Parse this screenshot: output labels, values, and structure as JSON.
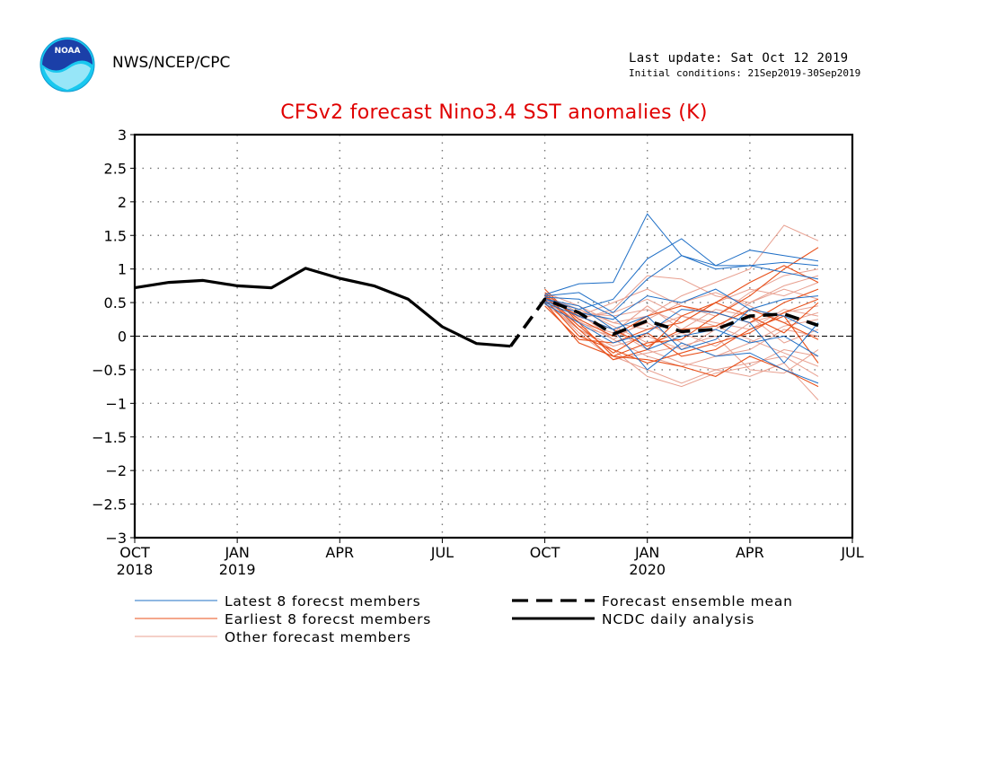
{
  "header": {
    "org": "NWS/NCEP/CPC",
    "last_update": "Last update: Sat Oct 12 2019",
    "initial_conditions": "Initial conditions: 21Sep2019-30Sep2019",
    "logo_text": "NOAA"
  },
  "chart_data": {
    "type": "line",
    "title": "CFSv2 forecast Nino3.4 SST anomalies (K)",
    "xlabel": "",
    "ylabel": "",
    "ylim": [
      -3,
      3
    ],
    "yticks": [
      3,
      2.5,
      2,
      1.5,
      1,
      0.5,
      0,
      -0.5,
      -1,
      -1.5,
      -2,
      -2.5,
      -3
    ],
    "ytick_labels": [
      "3",
      "2.5",
      "2",
      "1.5",
      "1",
      "0.5",
      "0",
      "−0.5",
      "−1",
      "−1.5",
      "−2",
      "−2.5",
      "−3"
    ],
    "xlim": [
      "2018-10",
      "2020-07"
    ],
    "xticks": [
      {
        "date": "2018-10",
        "label": "OCT",
        "year": "2018"
      },
      {
        "date": "2019-01",
        "label": "JAN",
        "year": "2019"
      },
      {
        "date": "2019-04",
        "label": "APR",
        "year": ""
      },
      {
        "date": "2019-07",
        "label": "JUL",
        "year": ""
      },
      {
        "date": "2019-10",
        "label": "OCT",
        "year": ""
      },
      {
        "date": "2020-01",
        "label": "JAN",
        "year": "2020"
      },
      {
        "date": "2020-04",
        "label": "APR",
        "year": ""
      },
      {
        "date": "2020-07",
        "label": "JUL",
        "year": ""
      }
    ],
    "grid": "dotted",
    "zero_line": "dashed",
    "legend": [
      {
        "label": "Latest 8 forecst members",
        "color": "#1f6fc6",
        "style": "thin"
      },
      {
        "label": "Earliest 8 forecst members",
        "color": "#e8501a",
        "style": "thin"
      },
      {
        "label": "Other forecast members",
        "color": "#e8a090",
        "style": "thin"
      },
      {
        "label": "Forecast ensemble mean",
        "color": "#000000",
        "style": "dashed"
      },
      {
        "label": "NCDC daily analysis",
        "color": "#000000",
        "style": "thick"
      }
    ],
    "series": [
      {
        "name": "NCDC daily analysis",
        "color": "#000000",
        "x": [
          "2018-10-01",
          "2018-11-01",
          "2018-12-01",
          "2019-01-01",
          "2019-02-01",
          "2019-03-01",
          "2019-04-01",
          "2019-05-01",
          "2019-06-01",
          "2019-07-01",
          "2019-08-01",
          "2019-09-01"
        ],
        "y": [
          0.72,
          0.8,
          0.83,
          0.75,
          0.72,
          1.01,
          0.86,
          0.75,
          0.55,
          0.14,
          -0.11,
          -0.15
        ]
      },
      {
        "name": "Forecast ensemble mean",
        "color": "#000000",
        "x": [
          "2019-09-01",
          "2019-10-01",
          "2019-11-01",
          "2019-12-01",
          "2020-01-01",
          "2020-02-01",
          "2020-03-01",
          "2020-04-01",
          "2020-05-01",
          "2020-06-01"
        ],
        "y": [
          -0.15,
          0.55,
          0.35,
          0.03,
          0.23,
          0.07,
          0.1,
          0.3,
          0.33,
          0.16
        ]
      }
    ],
    "ensemble_months": [
      "2019-10-01",
      "2019-11-01",
      "2019-12-01",
      "2020-01-01",
      "2020-02-01",
      "2020-03-01",
      "2020-04-01",
      "2020-05-01",
      "2020-06-01"
    ],
    "latest_members": [
      [
        0.62,
        0.78,
        0.8,
        1.82,
        1.2,
        1.0,
        1.05,
        1.1,
        1.05
      ],
      [
        0.55,
        0.4,
        0.55,
        1.15,
        1.45,
        1.05,
        1.05,
        0.95,
        0.85
      ],
      [
        0.6,
        0.65,
        0.35,
        0.85,
        1.2,
        1.05,
        1.28,
        1.2,
        1.12
      ],
      [
        0.5,
        0.3,
        0.1,
        -0.5,
        -0.1,
        -0.3,
        -0.25,
        -0.5,
        -0.7
      ],
      [
        0.55,
        0.45,
        0.1,
        0.3,
        -0.2,
        -0.05,
        0.4,
        0.55,
        0.6
      ],
      [
        0.48,
        0.2,
        -0.1,
        0.05,
        0.4,
        0.35,
        0.2,
        -0.4,
        0.2
      ],
      [
        0.58,
        0.55,
        0.3,
        -0.2,
        0.0,
        0.1,
        -0.1,
        0.0,
        -0.3
      ],
      [
        0.52,
        0.35,
        0.25,
        0.6,
        0.5,
        0.7,
        0.4,
        0.3,
        0.05
      ]
    ],
    "earliest_members": [
      [
        0.7,
        0.2,
        -0.3,
        -0.1,
        -0.05,
        0.3,
        0.6,
        1.0,
        1.32
      ],
      [
        0.6,
        0.1,
        -0.35,
        -0.2,
        0.3,
        0.5,
        0.8,
        1.05,
        0.8
      ],
      [
        0.55,
        0.0,
        -0.2,
        -0.4,
        -0.25,
        -0.1,
        0.05,
        0.35,
        0.55
      ],
      [
        0.65,
        0.25,
        0.0,
        0.3,
        0.45,
        0.35,
        0.2,
        0.5,
        0.7
      ],
      [
        0.5,
        -0.1,
        -0.3,
        -0.35,
        -0.45,
        -0.6,
        -0.3,
        -0.5,
        -0.75
      ],
      [
        0.58,
        0.3,
        0.1,
        -0.15,
        0.1,
        0.15,
        0.4,
        0.2,
        -0.05
      ],
      [
        0.62,
        0.15,
        -0.25,
        0.05,
        -0.3,
        -0.2,
        0.1,
        0.3,
        -0.4
      ],
      [
        0.45,
        -0.05,
        -0.1,
        0.1,
        0.2,
        0.5,
        0.3,
        0.05,
        0.5
      ]
    ],
    "other_members": [
      [
        0.6,
        0.3,
        0.1,
        -0.2,
        -0.4,
        -0.5,
        -0.6,
        -0.4,
        -0.95
      ],
      [
        0.55,
        0.4,
        0.2,
        0.3,
        0.6,
        0.8,
        1.0,
        1.65,
        1.42
      ],
      [
        0.58,
        0.2,
        -0.3,
        -0.5,
        -0.7,
        -0.5,
        -0.4,
        -0.3,
        -0.6
      ],
      [
        0.52,
        0.35,
        0.3,
        0.4,
        0.2,
        0.5,
        0.7,
        0.6,
        0.8
      ],
      [
        0.48,
        0.1,
        -0.2,
        -0.6,
        -0.75,
        -0.55,
        -0.45,
        -0.2,
        -0.3
      ],
      [
        0.62,
        0.25,
        0.4,
        0.9,
        0.85,
        0.6,
        0.5,
        0.7,
        0.55
      ],
      [
        0.57,
        0.15,
        0.0,
        0.2,
        -0.1,
        -0.3,
        -0.2,
        0.1,
        0.0
      ],
      [
        0.65,
        0.45,
        0.2,
        0.1,
        0.3,
        0.2,
        0.1,
        0.4,
        0.3
      ],
      [
        0.54,
        0.05,
        -0.35,
        -0.25,
        -0.15,
        0.0,
        -0.5,
        -0.55,
        -0.2
      ],
      [
        0.5,
        0.3,
        0.5,
        0.7,
        0.45,
        0.3,
        0.65,
        0.9,
        1.0
      ],
      [
        0.61,
        0.35,
        -0.05,
        -0.3,
        -0.45,
        -0.3,
        -0.1,
        0.15,
        0.25
      ],
      [
        0.56,
        0.2,
        0.05,
        0.45,
        0.1,
        0.4,
        0.3,
        -0.1,
        0.1
      ],
      [
        0.59,
        0.4,
        0.15,
        -0.1,
        0.05,
        -0.15,
        0.2,
        0.35,
        0.45
      ],
      [
        0.53,
        0.1,
        -0.15,
        0.0,
        -0.2,
        0.1,
        0.5,
        0.75,
        0.9
      ],
      [
        0.63,
        0.28,
        0.35,
        0.55,
        0.3,
        0.15,
        -0.05,
        -0.25,
        -0.45
      ],
      [
        0.51,
        0.22,
        -0.05,
        0.25,
        0.5,
        0.65,
        0.45,
        0.2,
        0.35
      ]
    ]
  }
}
